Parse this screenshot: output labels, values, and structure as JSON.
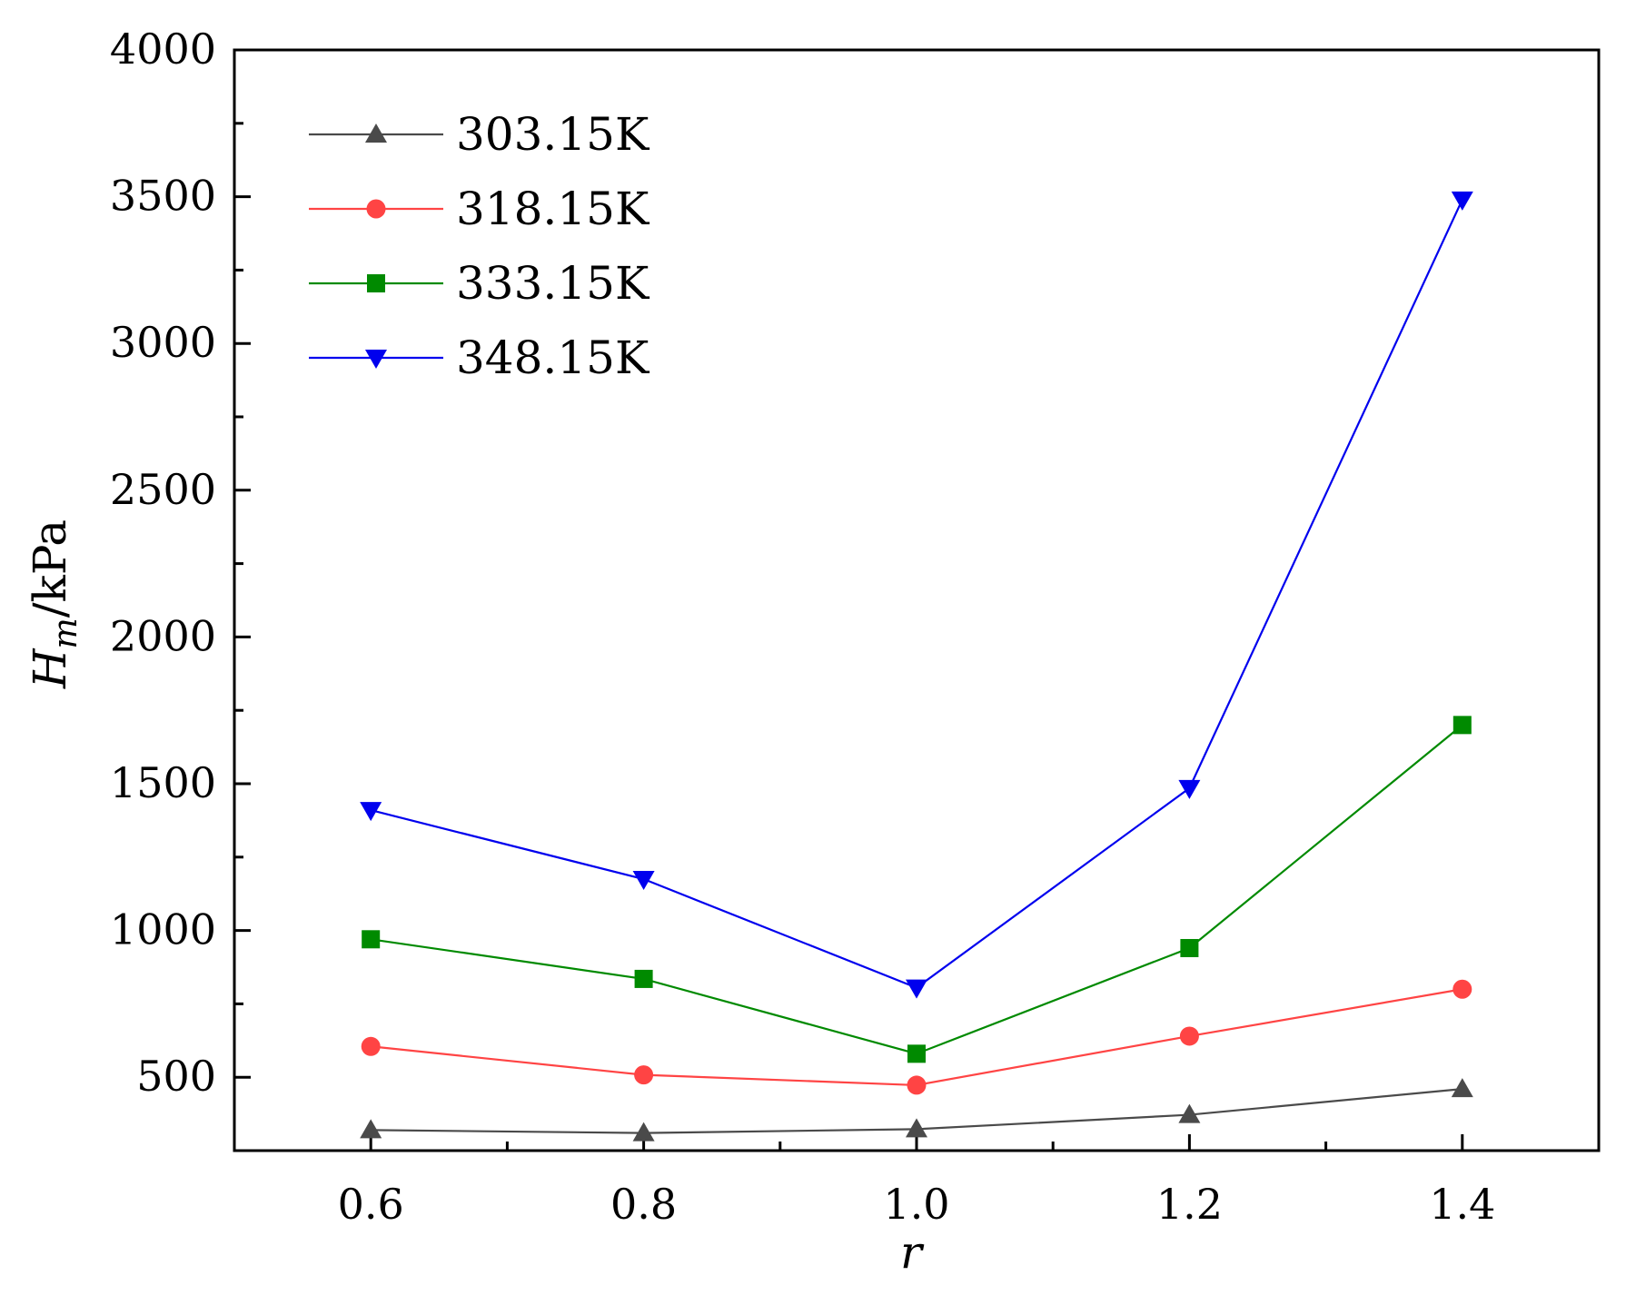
{
  "chart_data": {
    "type": "line",
    "title": "",
    "xlabel": "r",
    "ylabel_main": "H",
    "ylabel_sub": "m",
    "ylabel_unit": "/kPa",
    "xlim": [
      0.5,
      1.5
    ],
    "ylim": [
      250,
      4000
    ],
    "x": [
      0.6,
      0.8,
      1.0,
      1.2,
      1.4
    ],
    "x_tick_labels": [
      "0.6",
      "0.8",
      "1.0",
      "1.2",
      "1.4"
    ],
    "x_minor_ticks": [
      0.7,
      0.9,
      1.1,
      1.3
    ],
    "y_ticks": [
      500,
      1000,
      1500,
      2000,
      2500,
      3000,
      3500,
      4000
    ],
    "y_tick_labels": [
      "500",
      "1000",
      "1500",
      "2000",
      "2500",
      "3000",
      "3500",
      "4000"
    ],
    "y_minor_ticks": [
      750,
      1250,
      1750,
      2250,
      2750,
      3250,
      3750
    ],
    "grid": false,
    "legend_position": "top-left",
    "series": [
      {
        "name": "303.15K",
        "color": "#4a4a4a",
        "marker": "triangle-up",
        "values": [
          320,
          310,
          323,
          372,
          460
        ]
      },
      {
        "name": "318.15K",
        "color": "#ff4444",
        "marker": "circle",
        "values": [
          605,
          508,
          473,
          640,
          800
        ]
      },
      {
        "name": "333.15K",
        "color": "#008a00",
        "marker": "square",
        "values": [
          970,
          835,
          580,
          940,
          1700
        ]
      },
      {
        "name": "348.15K",
        "color": "#0000ee",
        "marker": "triangle-down",
        "values": [
          1410,
          1175,
          805,
          1485,
          3490
        ]
      }
    ]
  }
}
